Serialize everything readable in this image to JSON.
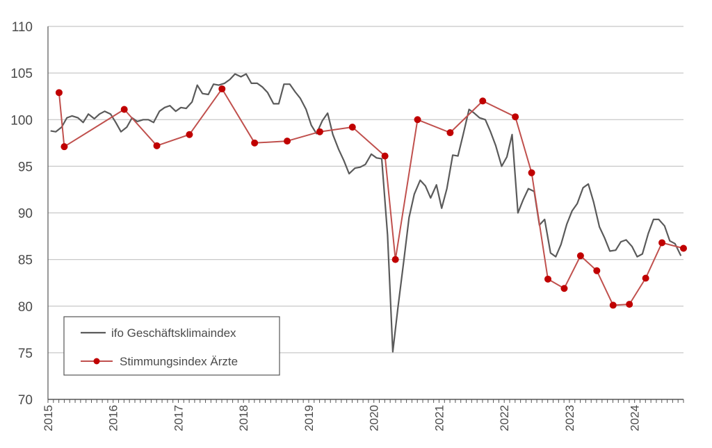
{
  "chart_data": {
    "type": "line",
    "title": "",
    "xlabel": "",
    "ylabel": "",
    "ylim": [
      70,
      110
    ],
    "y_ticks": [
      70,
      75,
      80,
      85,
      90,
      95,
      100,
      105,
      110
    ],
    "x_range": [
      2015.0,
      2024.75
    ],
    "x_tick_labels": [
      "2015",
      "2016",
      "2017",
      "2018",
      "2019",
      "2020",
      "2021",
      "2022",
      "2023",
      "2024"
    ],
    "grid": "horizontal",
    "legend_position": "bottom-left",
    "series": [
      {
        "name": "ifo Geschäftsklimaindex",
        "color": "#5a5a5a",
        "marker": "none",
        "x": [
          2015.04,
          2015.12,
          2015.21,
          2015.29,
          2015.37,
          2015.46,
          2015.54,
          2015.62,
          2015.71,
          2015.79,
          2015.87,
          2015.96,
          2016.04,
          2016.12,
          2016.21,
          2016.29,
          2016.37,
          2016.46,
          2016.54,
          2016.62,
          2016.71,
          2016.79,
          2016.87,
          2016.96,
          2017.04,
          2017.12,
          2017.21,
          2017.29,
          2017.37,
          2017.46,
          2017.54,
          2017.62,
          2017.71,
          2017.79,
          2017.87,
          2017.96,
          2018.04,
          2018.12,
          2018.21,
          2018.29,
          2018.37,
          2018.46,
          2018.54,
          2018.62,
          2018.71,
          2018.79,
          2018.87,
          2018.96,
          2019.04,
          2019.12,
          2019.21,
          2019.29,
          2019.37,
          2019.46,
          2019.54,
          2019.62,
          2019.71,
          2019.79,
          2019.87,
          2019.96,
          2020.04,
          2020.12,
          2020.21,
          2020.29,
          2020.37,
          2020.46,
          2020.54,
          2020.62,
          2020.71,
          2020.79,
          2020.87,
          2020.96,
          2021.04,
          2021.12,
          2021.21,
          2021.29,
          2021.37,
          2021.46,
          2021.54,
          2021.62,
          2021.71,
          2021.79,
          2021.87,
          2021.96,
          2022.04,
          2022.12,
          2022.21,
          2022.29,
          2022.37,
          2022.46,
          2022.54,
          2022.62,
          2022.71,
          2022.79,
          2022.87,
          2022.96,
          2023.04,
          2023.12,
          2023.21,
          2023.29,
          2023.37,
          2023.46,
          2023.54,
          2023.62,
          2023.71,
          2023.79,
          2023.87,
          2023.96,
          2024.04,
          2024.12,
          2024.21,
          2024.29,
          2024.37,
          2024.46,
          2024.54,
          2024.62,
          2024.71
        ],
        "y": [
          98.8,
          98.7,
          99.2,
          100.2,
          100.4,
          100.2,
          99.7,
          100.6,
          100.1,
          100.6,
          100.9,
          100.6,
          99.7,
          98.7,
          99.2,
          100.2,
          99.8,
          100.0,
          100.0,
          99.7,
          100.9,
          101.3,
          101.5,
          100.9,
          101.3,
          101.2,
          101.9,
          103.7,
          102.8,
          102.7,
          103.8,
          103.7,
          103.9,
          104.3,
          104.9,
          104.6,
          104.9,
          103.9,
          103.9,
          103.5,
          102.9,
          101.7,
          101.7,
          103.8,
          103.8,
          103.0,
          102.3,
          101.1,
          99.4,
          98.5,
          99.9,
          100.7,
          98.4,
          96.8,
          95.6,
          94.2,
          94.8,
          94.9,
          95.2,
          96.3,
          95.9,
          95.8,
          87.6,
          75.1,
          79.9,
          84.9,
          89.5,
          92.0,
          93.5,
          92.9,
          91.6,
          93.0,
          90.5,
          92.6,
          96.2,
          96.1,
          98.4,
          101.1,
          100.7,
          100.2,
          100.0,
          98.7,
          97.2,
          95.0,
          96.0,
          98.4,
          90.0,
          91.4,
          92.6,
          92.3,
          88.7,
          89.3,
          85.7,
          85.3,
          86.6,
          88.8,
          90.2,
          91.0,
          92.7,
          93.1,
          91.2,
          88.5,
          87.3,
          85.9,
          86.0,
          86.9,
          87.1,
          86.4,
          85.3,
          85.6,
          87.8,
          89.3,
          89.3,
          88.6,
          87.0,
          86.7,
          85.4
        ]
      },
      {
        "name": "Stimmungsindex Ärzte",
        "color": "#c0504d",
        "marker_color": "#c00000",
        "marker": "circle",
        "x": [
          2015.17,
          2015.25,
          2016.17,
          2016.67,
          2017.17,
          2017.67,
          2018.17,
          2018.67,
          2019.17,
          2019.67,
          2020.17,
          2020.33,
          2020.67,
          2021.17,
          2021.67,
          2022.17,
          2022.42,
          2022.67,
          2022.92,
          2023.17,
          2023.42,
          2023.67,
          2023.92,
          2024.17,
          2024.42,
          2024.75
        ],
        "y": [
          102.9,
          97.1,
          101.1,
          97.2,
          98.4,
          103.3,
          97.5,
          97.7,
          98.7,
          99.2,
          96.1,
          85.0,
          100.0,
          98.6,
          102.0,
          100.3,
          94.3,
          82.9,
          81.9,
          85.4,
          83.8,
          80.1,
          80.2,
          83.0,
          86.8,
          86.2
        ]
      }
    ]
  }
}
